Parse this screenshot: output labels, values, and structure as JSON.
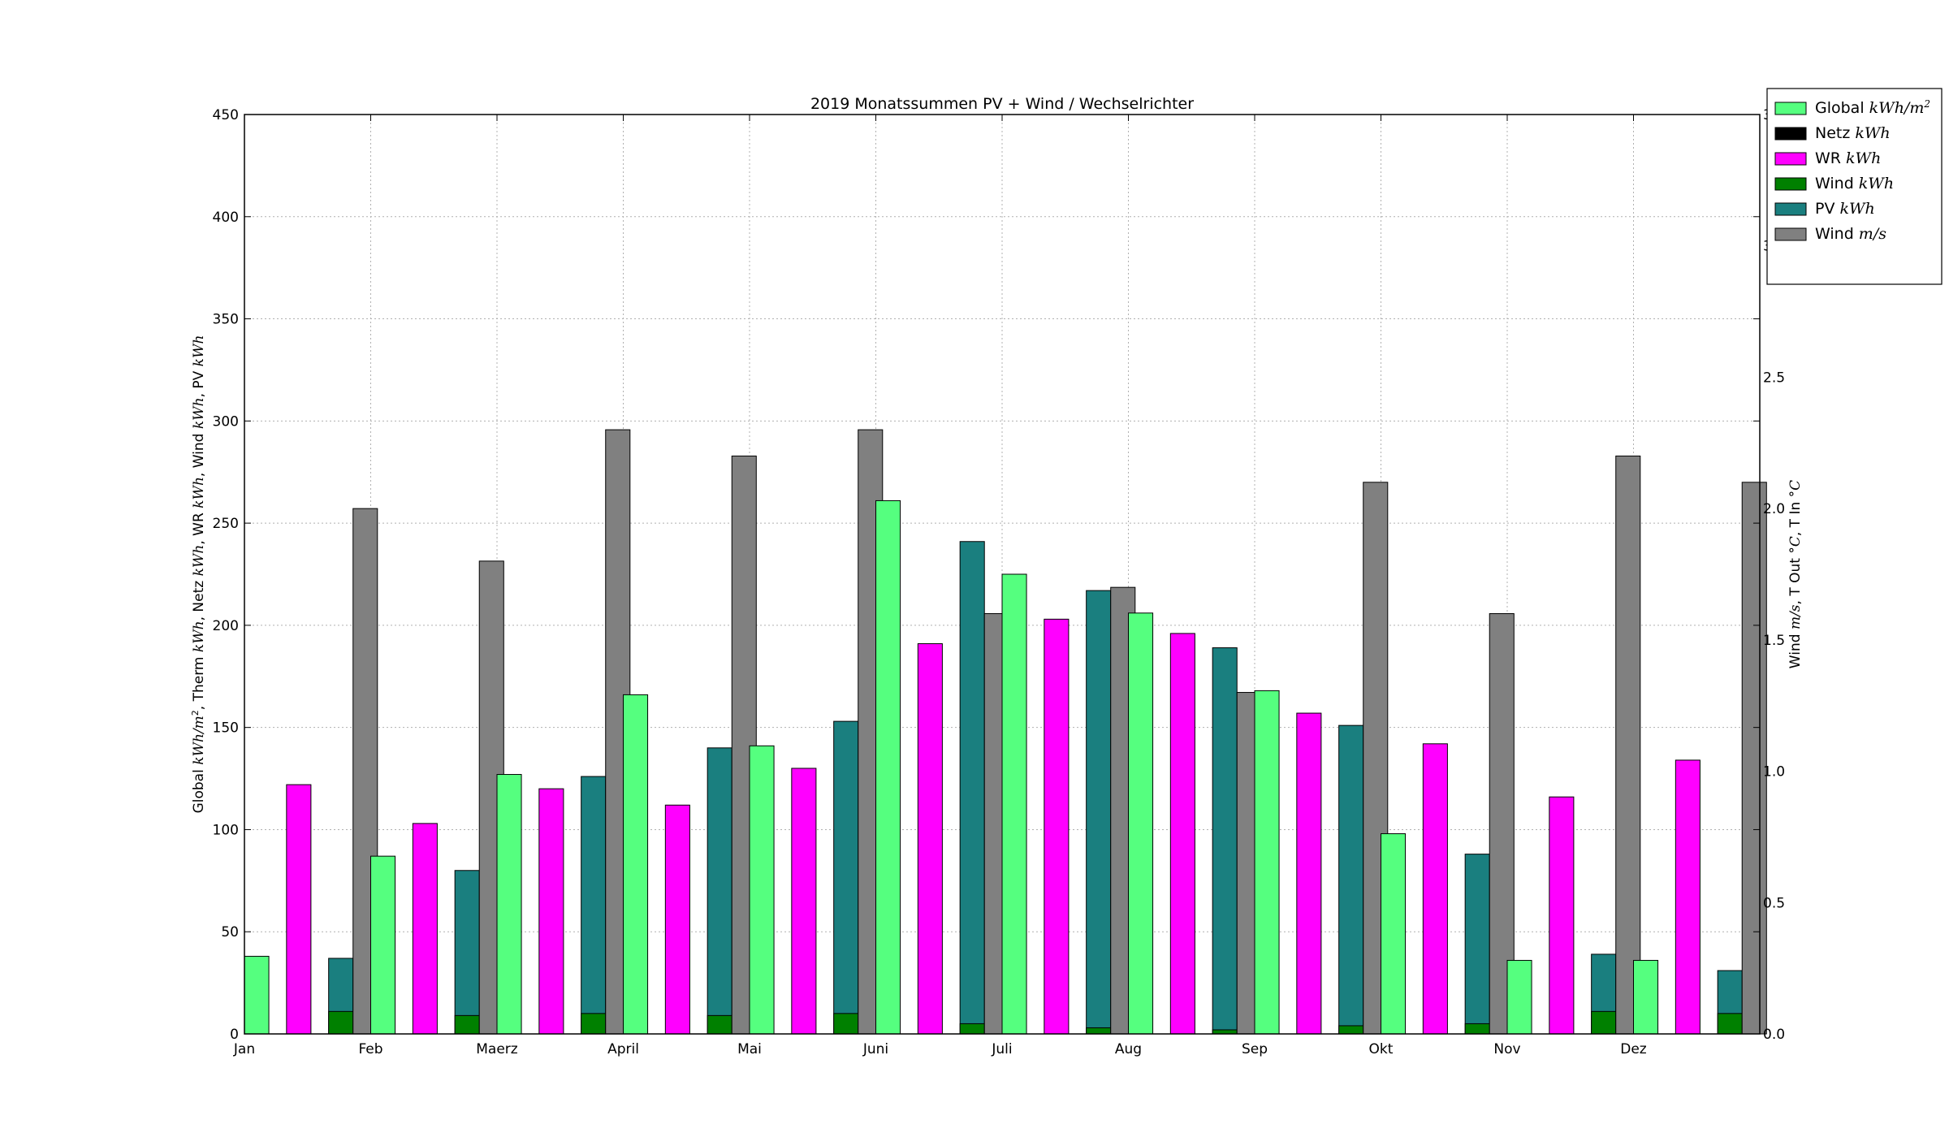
{
  "chart_data": {
    "type": "bar",
    "title": "2019 Monatssummen PV + Wind / Wechselrichter",
    "ylabel": "Global kWh/m², Therm kWh, Netz kWh, WR kWh, Wind kWh, PV kWh",
    "ylabel_parts": [
      "Global ",
      "kWh/m",
      "2",
      ", Therm ",
      "kWh",
      ", Netz ",
      "kWh",
      ", WR ",
      "kWh",
      ", Wind ",
      "kWh",
      ", PV ",
      "kWh"
    ],
    "y2label": "Wind m/s, T Out °C, T In °C",
    "y2label_parts": [
      "Wind ",
      "m/s",
      ", T Out ",
      "°C",
      ", T In ",
      "°C"
    ],
    "ylim": [
      0,
      450
    ],
    "y2lim": [
      0,
      3.5
    ],
    "yticks": [
      "0",
      "50",
      "100",
      "150",
      "200",
      "250",
      "300",
      "350",
      "400",
      "450"
    ],
    "y2ticks": [
      "0.0",
      "0.5",
      "1.0",
      "1.5",
      "2.0",
      "2.5",
      "3.0",
      "3.5"
    ],
    "categories": [
      "Jan",
      "Feb",
      "Maerz",
      "April",
      "Mai",
      "Juni",
      "Juli",
      "Aug",
      "Sep",
      "Okt",
      "Nov",
      "Dez"
    ],
    "grid": true,
    "legend_position": "top-right",
    "series": [
      {
        "name": "Global",
        "unit": "kWh/m",
        "unit_sup": "2",
        "axis": "left",
        "color": "#55ff7f",
        "values": [
          38,
          87,
          127,
          166,
          141,
          261,
          225,
          206,
          168,
          98,
          36,
          36
        ]
      },
      {
        "name": "Netz",
        "unit": "kWh",
        "axis": "left",
        "color": "#000000",
        "values": [
          0,
          0,
          0,
          0,
          0,
          0,
          0,
          0,
          0,
          0,
          0,
          0
        ]
      },
      {
        "name": "WR",
        "unit": "kWh",
        "axis": "left",
        "color": "#ff00ff",
        "values": [
          122,
          103,
          120,
          112,
          130,
          191,
          203,
          196,
          157,
          142,
          116,
          134
        ]
      },
      {
        "name": "Wind",
        "unit": "kWh",
        "axis": "left",
        "color": "#008000",
        "values": [
          11,
          9,
          10,
          9,
          10,
          5,
          3,
          2,
          4,
          5,
          11,
          10
        ]
      },
      {
        "name": "PV",
        "unit": "kWh",
        "axis": "left",
        "color": "#1a7f7f",
        "values": [
          37,
          80,
          126,
          140,
          153,
          241,
          217,
          189,
          151,
          88,
          39,
          31
        ]
      },
      {
        "name": "Wind",
        "unit": "m/s",
        "axis": "right",
        "color": "#808080",
        "values": [
          2.0,
          1.8,
          2.3,
          2.2,
          2.3,
          1.6,
          1.7,
          1.3,
          2.1,
          1.6,
          2.2,
          2.1
        ]
      }
    ]
  }
}
